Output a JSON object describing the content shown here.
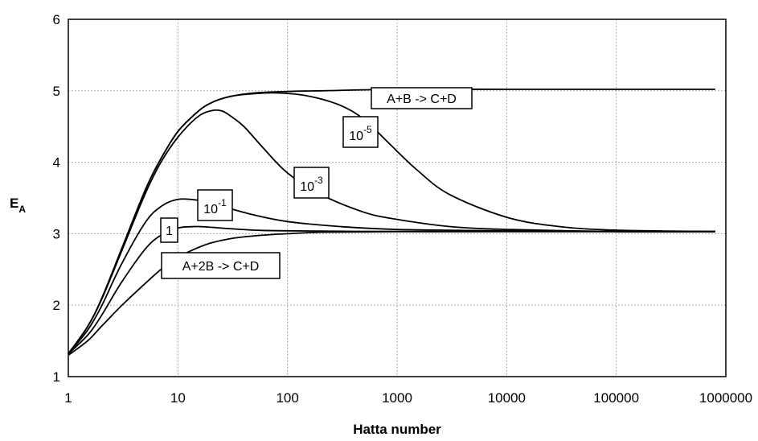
{
  "chart_data": {
    "type": "line",
    "xlabel": "Hatta number",
    "ylabel": "E",
    "ylabel_subscript": "A",
    "x_scale": "log",
    "xlim": [
      1,
      1000000
    ],
    "ylim": [
      1,
      6
    ],
    "x_ticks": [
      "1",
      "10",
      "100",
      "1000",
      "10000",
      "100000",
      "1000000"
    ],
    "y_ticks": [
      "1",
      "2",
      "3",
      "4",
      "5",
      "6"
    ],
    "grid": true,
    "series": [
      {
        "name": "A+B -> C+D",
        "x": [
          1,
          1.5,
          2,
          3,
          5,
          7,
          10,
          15,
          20,
          30,
          50,
          100,
          200,
          1000,
          10000,
          100000,
          800000
        ],
        "y": [
          1.32,
          1.7,
          2.08,
          2.75,
          3.6,
          4.05,
          4.43,
          4.7,
          4.83,
          4.92,
          4.97,
          4.99,
          5.0,
          5.02,
          5.02,
          5.02,
          5.02
        ]
      },
      {
        "name": "10^-5",
        "x": [
          1,
          1.5,
          2,
          3,
          5,
          7,
          10,
          15,
          20,
          30,
          50,
          80,
          150,
          300,
          500,
          800,
          1500,
          3000,
          10000,
          30000,
          100000,
          800000
        ],
        "y": [
          1.32,
          1.7,
          2.08,
          2.75,
          3.6,
          4.05,
          4.43,
          4.7,
          4.83,
          4.92,
          4.96,
          4.97,
          4.93,
          4.8,
          4.6,
          4.3,
          3.9,
          3.55,
          3.23,
          3.1,
          3.05,
          3.03
        ]
      },
      {
        "name": "10^-3",
        "x": [
          1,
          1.5,
          2,
          3,
          5,
          7,
          10,
          15,
          20,
          25,
          30,
          40,
          60,
          100,
          200,
          500,
          1000,
          3000,
          10000,
          100000,
          800000
        ],
        "y": [
          1.32,
          1.7,
          2.07,
          2.72,
          3.55,
          4.0,
          4.35,
          4.63,
          4.72,
          4.72,
          4.65,
          4.5,
          4.2,
          3.85,
          3.55,
          3.3,
          3.2,
          3.1,
          3.06,
          3.03,
          3.03
        ]
      },
      {
        "name": "10^-1",
        "x": [
          1,
          1.5,
          2,
          3,
          5,
          7,
          10,
          15,
          20,
          30,
          50,
          100,
          300,
          1000,
          10000,
          100000,
          800000
        ],
        "y": [
          1.32,
          1.65,
          1.98,
          2.55,
          3.15,
          3.38,
          3.48,
          3.47,
          3.42,
          3.35,
          3.26,
          3.17,
          3.1,
          3.06,
          3.04,
          3.03,
          3.03
        ]
      },
      {
        "name": "1",
        "x": [
          1,
          1.5,
          2,
          3,
          5,
          7,
          10,
          15,
          20,
          30,
          50,
          100,
          1000,
          10000,
          800000
        ],
        "y": [
          1.32,
          1.58,
          1.85,
          2.3,
          2.78,
          2.98,
          3.08,
          3.1,
          3.09,
          3.07,
          3.05,
          3.04,
          3.03,
          3.03,
          3.03
        ]
      },
      {
        "name": "A+2B -> C+D",
        "x": [
          1,
          1.5,
          2,
          3,
          5,
          7,
          10,
          15,
          20,
          30,
          50,
          100,
          200,
          1000,
          10000,
          800000
        ],
        "y": [
          1.3,
          1.5,
          1.7,
          1.98,
          2.3,
          2.5,
          2.67,
          2.8,
          2.87,
          2.93,
          2.97,
          3.0,
          3.02,
          3.03,
          3.03,
          3.03
        ]
      }
    ],
    "annotations": [
      {
        "label": "A+B -> C+D",
        "base": "A+B -> C+D",
        "exp": ""
      },
      {
        "label": "10^-5",
        "base": "10",
        "exp": "-5"
      },
      {
        "label": "10^-3",
        "base": "10",
        "exp": "-3"
      },
      {
        "label": "10^-1",
        "base": "10",
        "exp": "-1"
      },
      {
        "label": "1",
        "base": "1",
        "exp": ""
      },
      {
        "label": "A+2B -> C+D",
        "base": "A+2B -> C+D",
        "exp": ""
      }
    ]
  }
}
